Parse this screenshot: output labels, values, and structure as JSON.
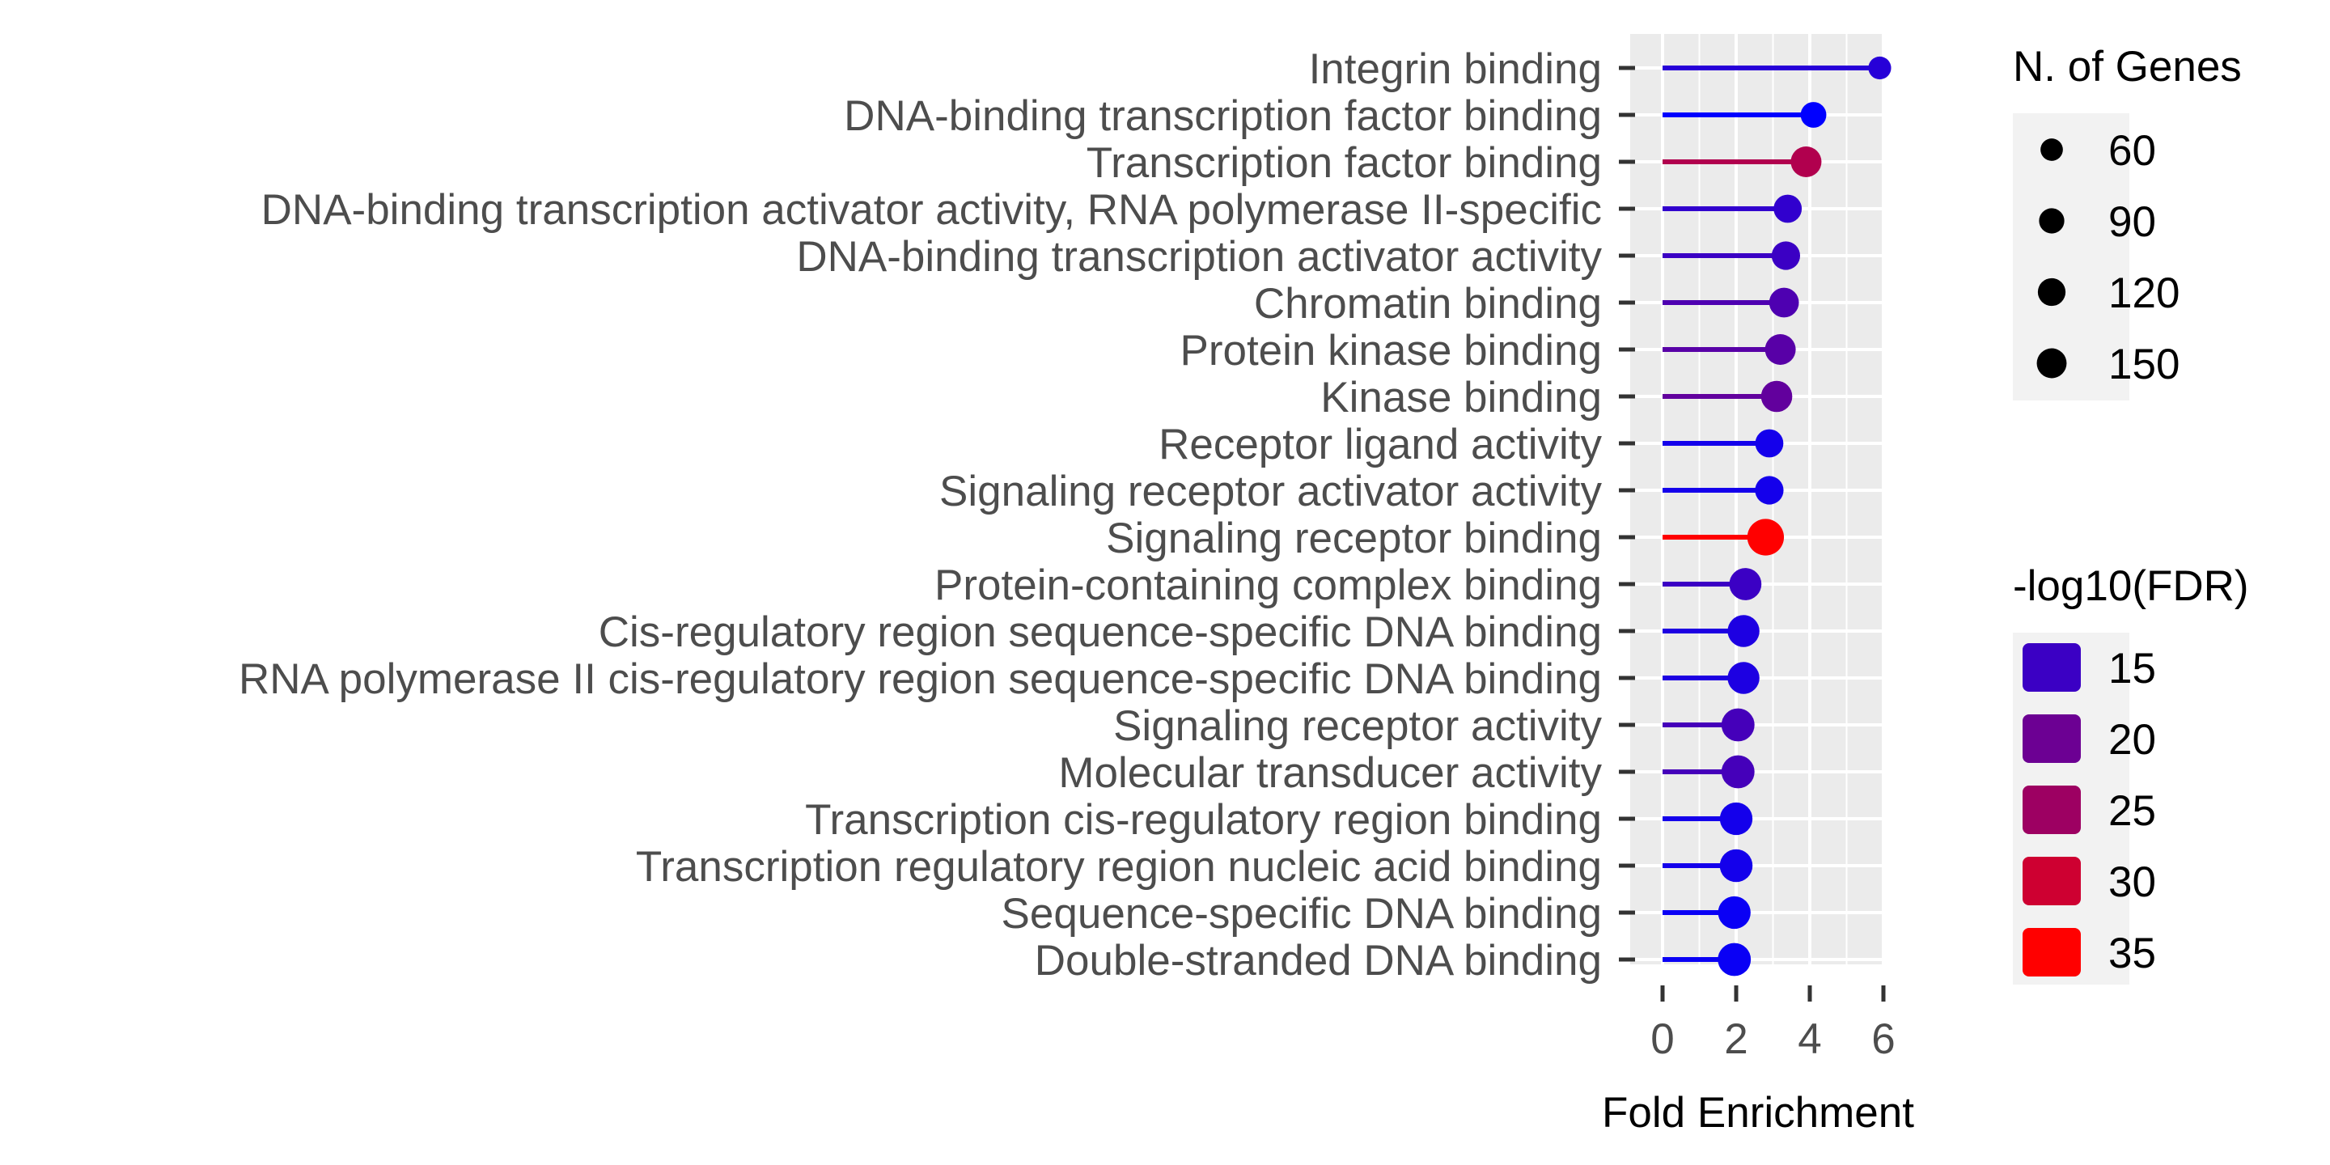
{
  "chart_data": {
    "type": "lollipop",
    "xlabel": "Fold Enrichment",
    "ylabel": "",
    "xlim": [
      0,
      6
    ],
    "x_ticks": [
      0,
      2,
      4,
      6
    ],
    "grid": "on",
    "categories": [
      "Integrin binding",
      "DNA-binding transcription factor binding",
      "Transcription factor binding",
      "DNA-binding transcription activator activity, RNA polymerase II-specific",
      "DNA-binding transcription activator activity",
      "Chromatin binding",
      "Protein kinase binding",
      "Kinase binding",
      "Receptor ligand activity",
      "Signaling receptor activator activity",
      "Signaling receptor binding",
      "Protein-containing complex binding",
      "Cis-regulatory region sequence-specific DNA binding",
      "RNA polymerase II cis-regulatory region sequence-specific DNA binding",
      "Signaling receptor activity",
      "Molecular transducer activity",
      "Transcription cis-regulatory region binding",
      "Transcription regulatory region nucleic acid binding",
      "Sequence-specific DNA binding",
      "Double-stranded DNA binding"
    ],
    "fold_enrichment": [
      5.9,
      4.1,
      3.9,
      3.4,
      3.35,
      3.3,
      3.2,
      3.1,
      2.9,
      2.9,
      2.8,
      2.25,
      2.2,
      2.2,
      2.05,
      2.05,
      2.0,
      2.0,
      1.95,
      1.95
    ],
    "n_genes": [
      35,
      55,
      100,
      75,
      78,
      90,
      100,
      105,
      75,
      78,
      170,
      115,
      112,
      112,
      125,
      125,
      120,
      122,
      120,
      125
    ],
    "neg_log10_fdr": [
      13,
      9,
      27,
      14,
      15,
      17,
      18,
      19,
      11,
      11,
      35,
      15,
      12,
      12,
      16,
      16,
      11,
      11,
      10,
      10
    ],
    "legends": {
      "size": {
        "title": "N. of Genes",
        "values": [
          60,
          90,
          120,
          150
        ],
        "labels": [
          "60",
          "90",
          "120",
          "150"
        ]
      },
      "color": {
        "title": "-log10(FDR)",
        "values": [
          15,
          20,
          25,
          30,
          35
        ],
        "labels": [
          "15",
          "20",
          "25",
          "30",
          "35"
        ],
        "low_color": "#0000ff",
        "high_color": "#ff0000",
        "fdr_min": 9,
        "fdr_max": 35
      },
      "placement": "right"
    }
  }
}
